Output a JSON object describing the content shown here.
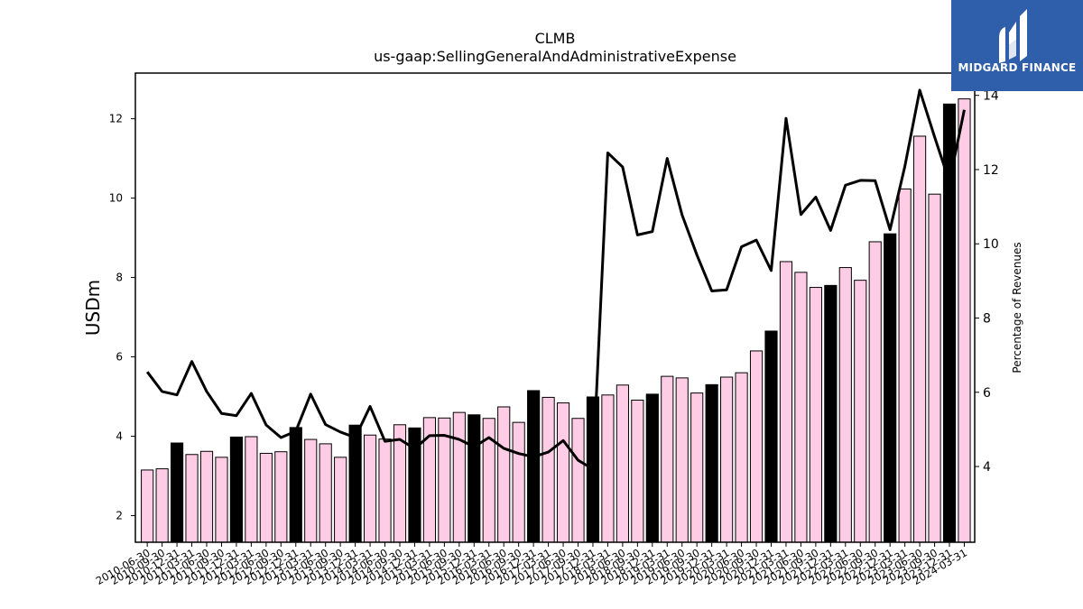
{
  "chart_data": {
    "type": "bar",
    "title": "CLMB",
    "subtitle": "us-gaap:SellingGeneralAndAdministrativeExpense",
    "ylabel": "USDm",
    "y2label": "Percentage of Revenues",
    "ylim": [
      1.33,
      13.15
    ],
    "y2lim": [
      1.96,
      14.6
    ],
    "yticks": [
      2,
      4,
      6,
      8,
      10,
      12
    ],
    "y2ticks": [
      4,
      6,
      8,
      10,
      12,
      14
    ],
    "colors": {
      "quarter_bar": "#ffcce6",
      "annual_bar": "#000000",
      "bar_edge": "#000000",
      "line": "#000000"
    },
    "categories": [
      "2010-06-30",
      "2010-09-30",
      "2010-12-31",
      "2011-03-31",
      "2011-06-30",
      "2011-09-30",
      "2011-12-31",
      "2012-03-31",
      "2012-06-30",
      "2012-09-30",
      "2012-12-31",
      "2013-03-31",
      "2013-06-30",
      "2013-09-30",
      "2013-12-31",
      "2014-03-31",
      "2014-06-30",
      "2014-09-30",
      "2014-12-31",
      "2015-03-31",
      "2015-06-30",
      "2015-09-30",
      "2015-12-31",
      "2016-03-31",
      "2016-06-30",
      "2016-09-30",
      "2016-12-31",
      "2017-03-31",
      "2017-06-30",
      "2017-09-30",
      "2017-12-31",
      "2018-03-31",
      "2018-06-30",
      "2018-09-30",
      "2018-12-31",
      "2019-03-31",
      "2019-06-30",
      "2019-09-30",
      "2019-12-31",
      "2020-03-31",
      "2020-06-30",
      "2020-09-30",
      "2020-12-31",
      "2021-03-31",
      "2021-06-30",
      "2021-09-30",
      "2021-12-31",
      "2022-03-31",
      "2022-06-30",
      "2022-09-30",
      "2022-12-31",
      "2023-03-31",
      "2023-06-30",
      "2023-09-30",
      "2023-12-31",
      "2024-03-31"
    ],
    "series": [
      {
        "type": "bar",
        "values": [
          3.15,
          3.18,
          3.83,
          3.54,
          3.62,
          3.47,
          3.98,
          3.99,
          3.57,
          3.61,
          4.22,
          3.92,
          3.81,
          3.47,
          4.28,
          4.03,
          3.93,
          4.29,
          4.21,
          4.47,
          4.46,
          4.6,
          4.54,
          4.45,
          4.74,
          4.35,
          5.15,
          4.98,
          4.84,
          4.45,
          4.99,
          5.04,
          5.29,
          4.91,
          5.06,
          5.51,
          5.47,
          5.09,
          5.3,
          5.49,
          5.6,
          6.15,
          6.65,
          8.4,
          8.13,
          7.75,
          7.8,
          8.25,
          7.93,
          8.9,
          9.1,
          10.23,
          11.56,
          10.1,
          12.37,
          12.5
        ],
        "annual": [
          false,
          false,
          true,
          false,
          false,
          false,
          true,
          false,
          false,
          false,
          true,
          false,
          false,
          false,
          true,
          false,
          false,
          false,
          true,
          false,
          false,
          false,
          true,
          false,
          false,
          false,
          true,
          false,
          false,
          false,
          true,
          false,
          false,
          false,
          true,
          false,
          false,
          false,
          true,
          false,
          false,
          false,
          true,
          false,
          false,
          false,
          true,
          false,
          false,
          false,
          true,
          false,
          false,
          false,
          true,
          false
        ]
      },
      {
        "type": "line",
        "axis": "right",
        "values": [
          6.55,
          6.02,
          5.93,
          6.83,
          6.02,
          5.43,
          5.37,
          5.97,
          5.12,
          4.78,
          4.95,
          5.95,
          5.13,
          4.93,
          4.78,
          5.62,
          4.68,
          4.73,
          4.48,
          4.83,
          4.84,
          4.73,
          4.53,
          4.78,
          4.49,
          4.35,
          4.26,
          4.39,
          4.7,
          4.17,
          3.93,
          12.45,
          12.07,
          10.24,
          10.33,
          12.3,
          10.78,
          9.7,
          8.73,
          8.76,
          9.92,
          10.1,
          9.28,
          13.38,
          10.79,
          11.26,
          10.36,
          11.58,
          11.71,
          11.7,
          10.38,
          12.09,
          14.14,
          12.88,
          11.67,
          13.61
        ]
      }
    ]
  },
  "logo": {
    "text": "MIDGARD FINANCE"
  }
}
